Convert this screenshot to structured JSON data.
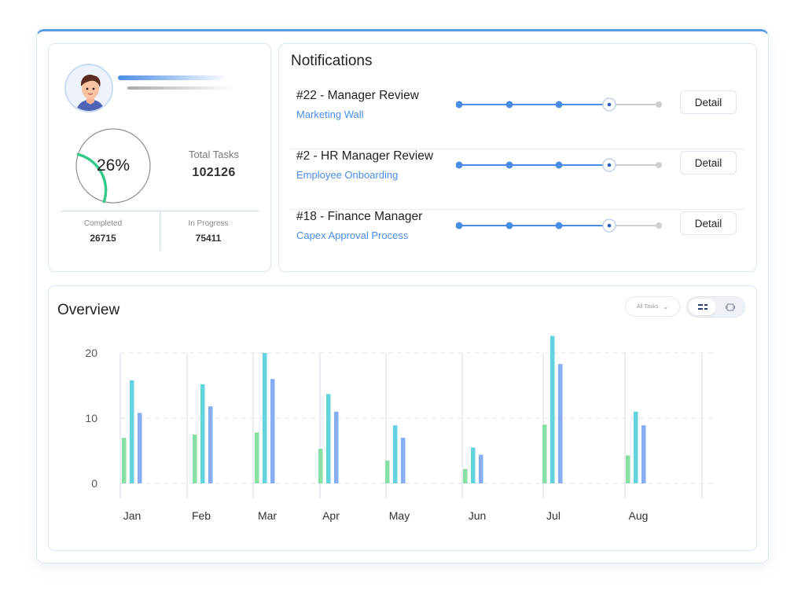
{
  "profile": {
    "percent_label": "26%",
    "completion_fraction": 0.26,
    "total_label": "Total Tasks",
    "total_value": "102126",
    "completed_label": "Completed",
    "completed_value": "26715",
    "in_progress_label": "In Progress",
    "in_progress_value": "75411"
  },
  "notifications": {
    "title": "Notifications",
    "items": [
      {
        "name": "#22 - Manager Review",
        "subtitle": "Marketing Wall",
        "button": "Detail",
        "current_step": 4,
        "steps": 5
      },
      {
        "name": "#2 - HR Manager Review",
        "subtitle": "Employee Onboarding",
        "button": "Detail",
        "current_step": 4,
        "steps": 5
      },
      {
        "name": "#18 - Finance Manager",
        "subtitle": "Capex Approval Process",
        "button": "Detail",
        "current_step": 4,
        "steps": 5
      }
    ]
  },
  "overview": {
    "title": "Overview",
    "filter_value": "All Tasks",
    "view_toggle": [
      "list-view-icon",
      "card-view-icon"
    ]
  },
  "colors": {
    "accent": "#4a8de6",
    "ring": "#34c98a",
    "series": [
      "#86e0a3",
      "#63d3e0",
      "#87aef5"
    ]
  },
  "chart_data": {
    "type": "bar",
    "categories": [
      "Jan",
      "Feb",
      "Mar",
      "Apr",
      "May",
      "Jun",
      "Jul",
      "Aug"
    ],
    "series": [
      {
        "values": [
          7,
          7.5,
          7.8,
          5.3,
          3.5,
          2.2,
          9,
          4.3
        ]
      },
      {
        "values": [
          15.8,
          15.2,
          20,
          13.7,
          8.9,
          5.5,
          22.6,
          11
        ]
      },
      {
        "values": [
          10.8,
          11.8,
          16,
          11,
          7,
          4.4,
          18.3,
          8.9
        ]
      }
    ],
    "yticks": [
      0,
      10,
      20
    ],
    "ylim": [
      0,
      22.6
    ],
    "grid": true
  }
}
